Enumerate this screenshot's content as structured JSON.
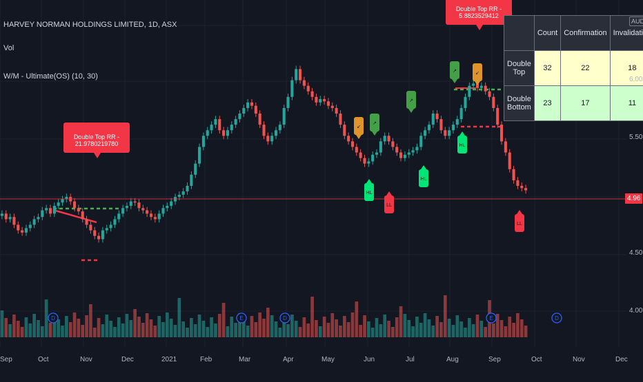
{
  "symbol_title": "HARVEY NORMAN HOLDINGS LIMITED, 1D, ASX",
  "vol_label": "Vol",
  "indicator_label": "W/M - Ultimate(OS) (10, 30)",
  "currency": "AUD",
  "last_price": "4.96",
  "callout_left": "Double Top RR - 21.9780219780",
  "callout_right": "Double Top RR - 5.8823529412",
  "y_ticks": [
    "6.00",
    "5.50",
    "4.50",
    "4.00"
  ],
  "x_ticks": [
    "Sep",
    "Oct",
    "Nov",
    "Dec",
    "2021",
    "Feb",
    "Mar",
    "Apr",
    "May",
    "Jun",
    "Jul",
    "Aug",
    "Sep",
    "Oct",
    "Nov",
    "Dec"
  ],
  "table": {
    "headers": [
      "Count",
      "Confirmation",
      "Invalidation"
    ],
    "rows": [
      {
        "label": "Double Top",
        "count": "32",
        "confirmation": "22",
        "invalidation": "18"
      },
      {
        "label": "Double Bottom",
        "count": "23",
        "confirmation": "17",
        "invalidation": "11"
      }
    ]
  },
  "markers": [
    {
      "label": "↙",
      "kind": "orange"
    },
    {
      "label": "↗",
      "kind": "green-top"
    },
    {
      "label": "HL",
      "kind": "green-bottom"
    },
    {
      "label": "LL",
      "kind": "red"
    },
    {
      "label": "↗",
      "kind": "green-top"
    },
    {
      "label": "HL",
      "kind": "green-bottom"
    },
    {
      "label": "↗",
      "kind": "green-top"
    },
    {
      "label": "HL",
      "kind": "green-bottom"
    },
    {
      "label": "↙",
      "kind": "orange"
    },
    {
      "label": "LL",
      "kind": "red"
    }
  ],
  "event_icons": [
    "D",
    "E",
    "D",
    "E",
    "D"
  ],
  "colors": {
    "up": "#26a69a",
    "down": "#ef5350",
    "bg": "#131722",
    "callout": "#f23645",
    "marker_green": "#43a047",
    "marker_orange": "#e0952c",
    "marker_green_bottom": "#00e676",
    "marker_red": "#f23645"
  },
  "chart_data": {
    "type": "candlestick",
    "ylim": [
      3.7,
      6.3
    ],
    "closes": [
      4.75,
      4.7,
      4.72,
      4.65,
      4.6,
      4.58,
      4.62,
      4.65,
      4.7,
      4.72,
      4.78,
      4.8,
      4.75,
      4.82,
      4.85,
      4.88,
      4.9,
      4.86,
      4.8,
      4.77,
      4.7,
      4.65,
      4.6,
      4.55,
      4.52,
      4.6,
      4.62,
      4.65,
      4.7,
      4.75,
      4.8,
      4.82,
      4.86,
      4.85,
      4.8,
      4.78,
      4.75,
      4.72,
      4.7,
      4.75,
      4.8,
      4.82,
      4.86,
      4.9,
      4.92,
      4.95,
      5.0,
      5.1,
      5.2,
      5.35,
      5.45,
      5.5,
      5.55,
      5.6,
      5.5,
      5.45,
      5.5,
      5.55,
      5.6,
      5.65,
      5.7,
      5.75,
      5.72,
      5.65,
      5.55,
      5.45,
      5.4,
      5.45,
      5.5,
      5.55,
      5.7,
      5.8,
      5.95,
      6.05,
      5.95,
      5.9,
      5.85,
      5.8,
      5.75,
      5.78,
      5.76,
      5.72,
      5.7,
      5.65,
      5.55,
      5.45,
      5.4,
      5.35,
      5.3,
      5.25,
      5.2,
      5.22,
      5.28,
      5.3,
      5.4,
      5.45,
      5.4,
      5.35,
      5.3,
      5.25,
      5.28,
      5.3,
      5.32,
      5.35,
      5.45,
      5.5,
      5.55,
      5.65,
      5.6,
      5.5,
      5.45,
      5.5,
      5.55,
      5.6,
      5.7,
      5.8,
      5.9,
      5.92,
      5.88,
      5.9,
      5.85,
      5.8,
      5.7,
      5.55,
      5.4,
      5.3,
      5.15,
      5.05,
      5.0,
      4.98,
      4.96
    ]
  }
}
